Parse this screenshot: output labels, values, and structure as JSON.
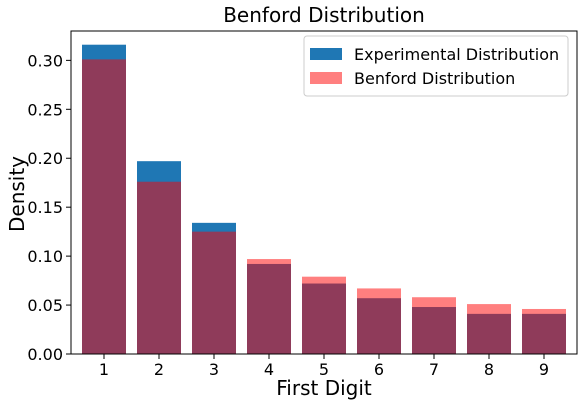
{
  "chart_data": {
    "type": "bar",
    "title": "Benford Distribution",
    "xlabel": "First Digit",
    "ylabel": "Density",
    "categories": [
      "1",
      "2",
      "3",
      "4",
      "5",
      "6",
      "7",
      "8",
      "9"
    ],
    "ylim": [
      0,
      0.33
    ],
    "yticks": [
      "0.00",
      "0.05",
      "0.10",
      "0.15",
      "0.20",
      "0.25",
      "0.30"
    ],
    "grid": false,
    "legend_position": "top-right",
    "series": [
      {
        "name": "Experimental Distribution",
        "color": "#1f77b4",
        "opacity": 1,
        "values": [
          0.316,
          0.197,
          0.134,
          0.092,
          0.072,
          0.057,
          0.048,
          0.041,
          0.041
        ]
      },
      {
        "name": "Benford Distribution",
        "color": "#ff0000",
        "opacity": 0.5,
        "values": [
          0.301,
          0.176,
          0.125,
          0.097,
          0.079,
          0.067,
          0.058,
          0.051,
          0.046
        ]
      }
    ]
  }
}
